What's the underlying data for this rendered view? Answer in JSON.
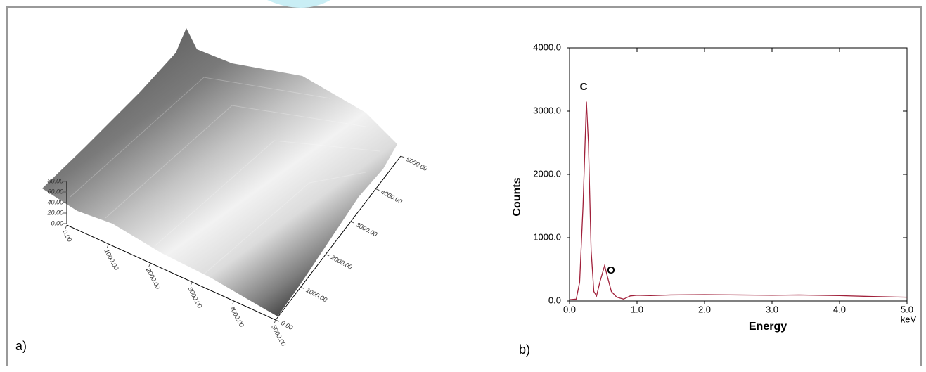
{
  "chart_data": [
    {
      "type": "surface",
      "panel_label": "a)",
      "xlim": [
        0,
        5000
      ],
      "xticks": [
        {
          "value": 0,
          "label": "0.00"
        },
        {
          "value": 1000,
          "label": "1000.00"
        },
        {
          "value": 2000,
          "label": "2000.00"
        },
        {
          "value": 3000,
          "label": "3000.00"
        },
        {
          "value": 4000,
          "label": "4000.00"
        },
        {
          "value": 5000,
          "label": "5000.00"
        }
      ],
      "ylim": [
        0,
        5000
      ],
      "yticks": [
        {
          "value": 0,
          "label": "0.00"
        },
        {
          "value": 1000,
          "label": "1000.00"
        },
        {
          "value": 2000,
          "label": "2000.00"
        },
        {
          "value": 3000,
          "label": "3000.00"
        },
        {
          "value": 4000,
          "label": "4000.00"
        },
        {
          "value": 5000,
          "label": "5000.00"
        }
      ],
      "zlim": [
        0,
        80
      ],
      "zticks": [
        {
          "value": 0,
          "label": "0.00"
        },
        {
          "value": 20,
          "label": "20.00"
        },
        {
          "value": 40,
          "label": "40.00"
        },
        {
          "value": 60,
          "label": "60.00"
        },
        {
          "value": 80,
          "label": "80.00"
        }
      ]
    },
    {
      "type": "line",
      "panel_label": "b)",
      "xlabel": "Energy",
      "ylabel": "Counts",
      "x_unit": "keV",
      "annotations": [
        "C",
        "O"
      ],
      "color": "#a0203a",
      "xlim": [
        0,
        5
      ],
      "xticks": [
        {
          "value": 0,
          "label": "0.0"
        },
        {
          "value": 1,
          "label": "1.0"
        },
        {
          "value": 2,
          "label": "2.0"
        },
        {
          "value": 3,
          "label": "3.0"
        },
        {
          "value": 4,
          "label": "4.0"
        },
        {
          "value": 5,
          "label": "5.0"
        }
      ],
      "ylim": [
        0,
        4000
      ],
      "yticks": [
        {
          "value": 0,
          "label": "0.0"
        },
        {
          "value": 1000,
          "label": "1000.0"
        },
        {
          "value": 2000,
          "label": "2000.0"
        },
        {
          "value": 3000,
          "label": "3000.0"
        },
        {
          "value": 4000,
          "label": "4000.0"
        }
      ],
      "x": [
        0,
        0.1,
        0.15,
        0.2,
        0.25,
        0.28,
        0.32,
        0.36,
        0.4,
        0.45,
        0.52,
        0.57,
        0.62,
        0.7,
        0.8,
        0.9,
        1.0,
        1.2,
        1.5,
        2.0,
        2.5,
        3.0,
        3.4,
        4.0,
        4.5,
        5.0
      ],
      "values": [
        20,
        30,
        300,
        1500,
        3150,
        2500,
        800,
        150,
        80,
        300,
        560,
        350,
        150,
        60,
        30,
        80,
        90,
        85,
        95,
        100,
        95,
        90,
        95,
        85,
        70,
        60
      ]
    }
  ]
}
